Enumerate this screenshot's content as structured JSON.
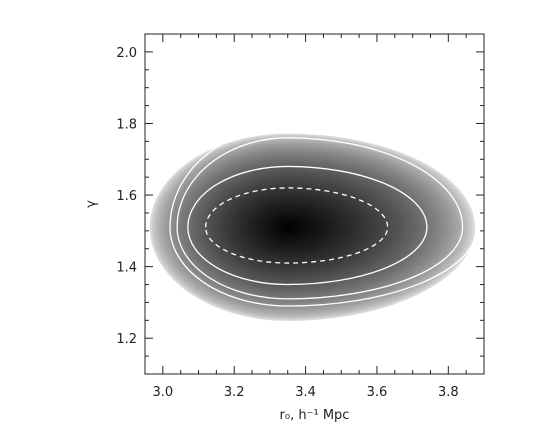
{
  "chart_data": {
    "type": "heatmap",
    "title": "",
    "xlabel": "r₀, h⁻¹ Mpc",
    "ylabel": "γ",
    "xlim": [
      2.95,
      3.9
    ],
    "ylim": [
      1.1,
      2.05
    ],
    "x_ticks": [
      3.0,
      3.2,
      3.4,
      3.6,
      3.8
    ],
    "x_tick_labels": [
      "3.0",
      "3.2",
      "3.4",
      "3.6",
      "3.8"
    ],
    "y_ticks": [
      1.2,
      1.4,
      1.6,
      1.8,
      2.0
    ],
    "y_tick_labels": [
      "1.2",
      "1.4",
      "1.6",
      "1.8",
      "2.0"
    ],
    "colormap": "grayscale (white = low likelihood, black = peak likelihood)",
    "peak": {
      "r0": 3.35,
      "gamma": 1.51
    },
    "contours": [
      {
        "style": "dashed",
        "color": "#ffffff",
        "x_range": [
          3.12,
          3.63
        ],
        "y_range": [
          1.41,
          1.62
        ]
      },
      {
        "style": "solid",
        "color": "#ffffff",
        "x_range": [
          3.07,
          3.74
        ],
        "y_range": [
          1.35,
          1.68
        ]
      },
      {
        "style": "solid",
        "color": "#ffffff",
        "x_range": [
          3.04,
          3.84
        ],
        "y_range": [
          1.31,
          1.76
        ]
      },
      {
        "style": "solid",
        "color": "#ffffff",
        "x_range": [
          3.02,
          3.88
        ],
        "y_range": [
          1.29,
          1.79
        ]
      }
    ],
    "grid": false,
    "legend": "none"
  }
}
